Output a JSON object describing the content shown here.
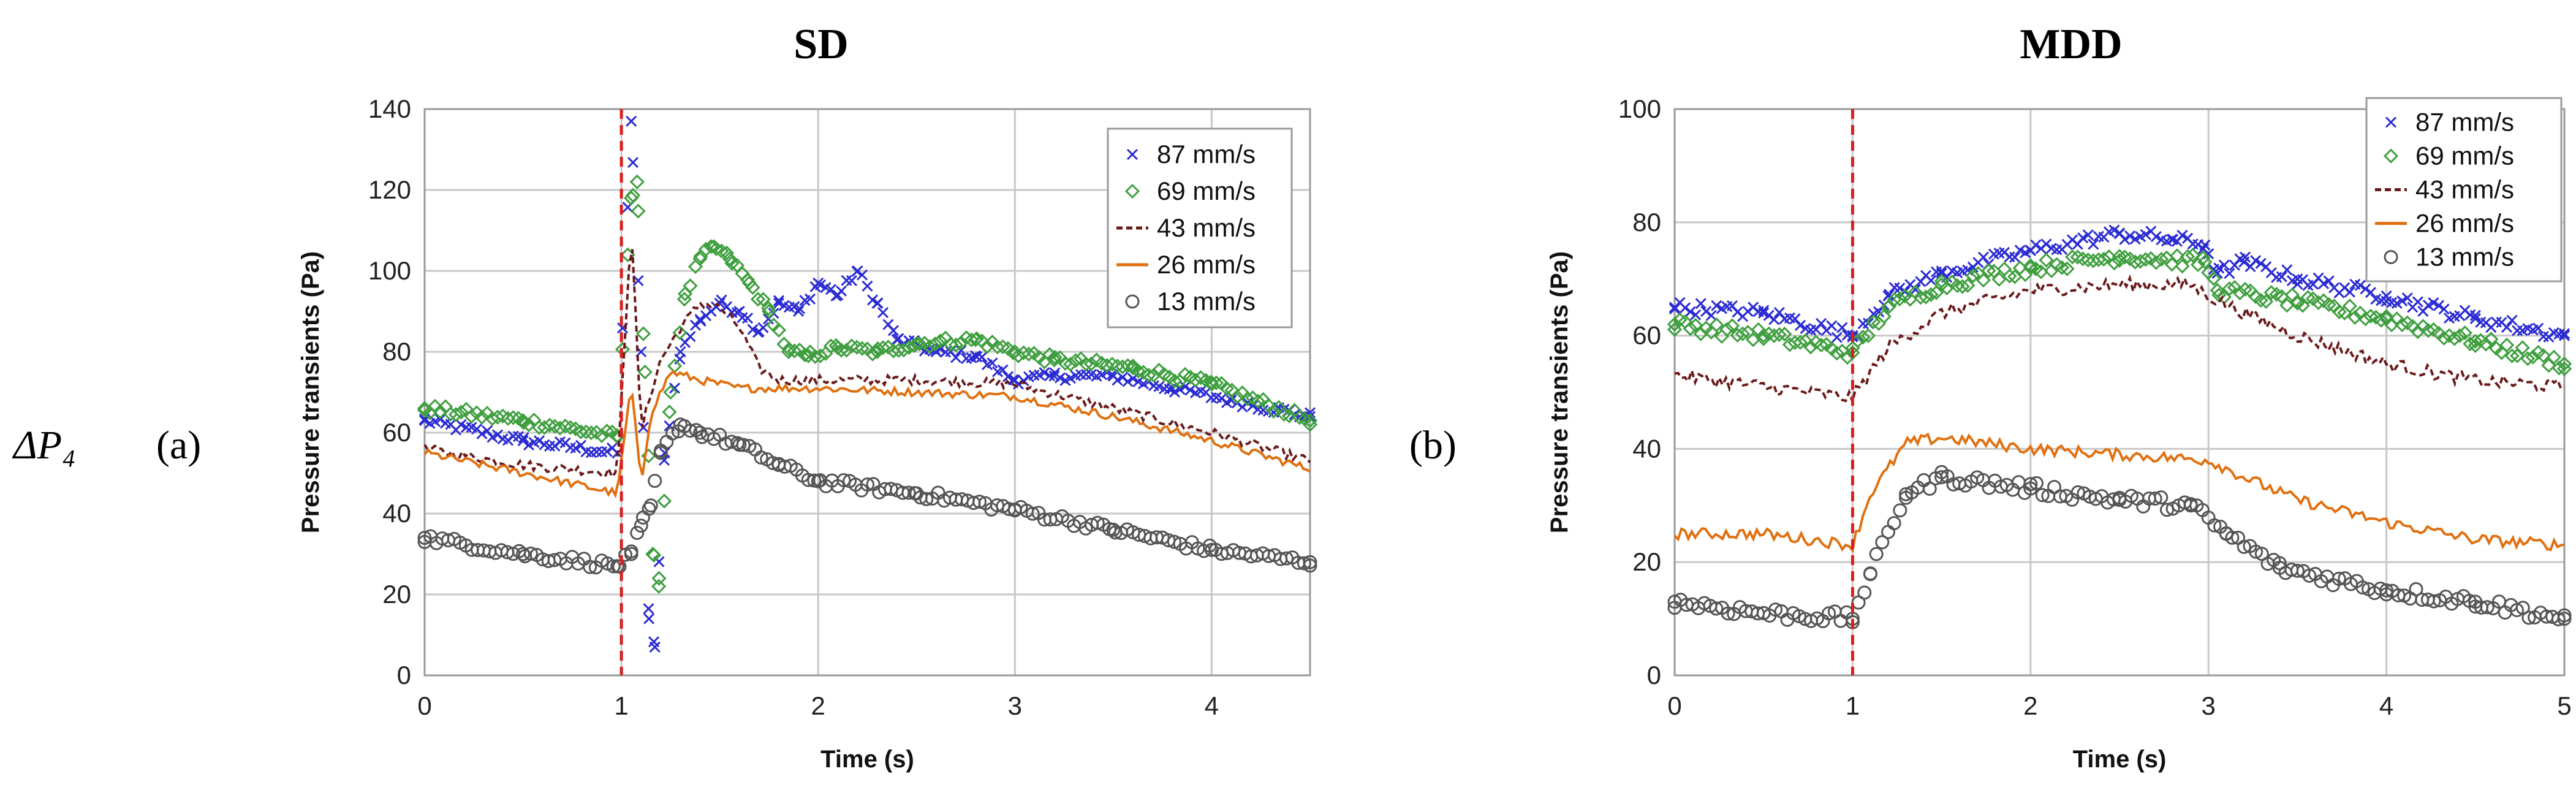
{
  "row_label": "ΔP₄",
  "colors": {
    "87": "#2b2bd4",
    "69": "#3f9f3f",
    "43": "#6b1a1a",
    "26": "#e07010",
    "13": "#555555",
    "marker_line": "#d91f1f"
  },
  "chart_data": [
    {
      "type": "scatter",
      "title": "SD",
      "panel_label": "(a)",
      "xlabel": "Time (s)",
      "ylabel": "Pressure transients (Pa)",
      "xlim": [
        0,
        4.5
      ],
      "ylim": [
        0,
        140
      ],
      "xticks": [
        0,
        1,
        2,
        3,
        4
      ],
      "yticks": [
        0,
        20,
        40,
        60,
        80,
        100,
        120,
        140
      ],
      "vline_x": 1.0,
      "legend_position": "top-right",
      "series": [
        {
          "name": "87 mm/s",
          "key": "87",
          "marker": "x",
          "x": [
            0,
            0.5,
            0.98,
            1.05,
            1.1,
            1.14,
            1.17,
            1.22,
            1.3,
            1.4,
            1.5,
            1.6,
            1.7,
            1.8,
            1.9,
            2.0,
            2.1,
            2.2,
            2.3,
            2.4,
            2.6,
            2.8,
            3.0,
            3.2,
            3.5,
            3.8,
            4.1,
            4.5
          ],
          "y": [
            63,
            58,
            55,
            137,
            80,
            14,
            7,
            55,
            80,
            88,
            92,
            90,
            85,
            92,
            90,
            97,
            94,
            100,
            92,
            83,
            80,
            79,
            73,
            74,
            74,
            71,
            68,
            64
          ]
        },
        {
          "name": "69 mm/s",
          "key": "69",
          "marker": "diamond",
          "x": [
            0,
            0.5,
            0.98,
            1.05,
            1.08,
            1.12,
            1.16,
            1.19,
            1.25,
            1.32,
            1.4,
            1.47,
            1.55,
            1.65,
            1.75,
            1.85,
            1.95,
            2.1,
            2.3,
            2.5,
            2.8,
            3.0,
            3.2,
            3.6,
            4.0,
            4.5
          ],
          "y": [
            66,
            63,
            59,
            118,
            122,
            75,
            30,
            22,
            70,
            93,
            103,
            106,
            103,
            97,
            90,
            80,
            79,
            81,
            80,
            82,
            83,
            80,
            78,
            76,
            72,
            63
          ]
        },
        {
          "name": "43 mm/s",
          "key": "43",
          "marker": "dash",
          "x": [
            0,
            0.5,
            0.98,
            1.05,
            1.1,
            1.15,
            1.2,
            1.3,
            1.4,
            1.5,
            1.6,
            1.7,
            1.8,
            2.0,
            2.5,
            3.0,
            3.5,
            4.0,
            4.5
          ],
          "y": [
            56,
            52,
            50,
            112,
            60,
            70,
            78,
            86,
            92,
            91,
            86,
            76,
            73,
            73,
            73,
            72,
            66,
            60,
            53
          ]
        },
        {
          "name": "26 mm/s",
          "key": "26",
          "marker": "line",
          "x": [
            0,
            0.5,
            0.98,
            1.05,
            1.1,
            1.15,
            1.25,
            1.4,
            1.6,
            2.0,
            2.5,
            3.0,
            3.5,
            4.0,
            4.5
          ],
          "y": [
            55,
            50,
            45,
            72,
            47,
            65,
            75,
            73,
            71,
            71,
            70,
            69,
            64,
            58,
            51
          ]
        },
        {
          "name": "13 mm/s",
          "key": "13",
          "marker": "circle",
          "x": [
            0,
            0.5,
            0.98,
            1.05,
            1.1,
            1.15,
            1.2,
            1.3,
            1.4,
            1.6,
            1.8,
            2.0,
            2.5,
            3.0,
            3.5,
            4.0,
            4.5
          ],
          "y": [
            34,
            30,
            27,
            30,
            37,
            42,
            55,
            62,
            60,
            57,
            52,
            48,
            45,
            41,
            36,
            31,
            28
          ]
        }
      ]
    },
    {
      "type": "scatter",
      "title": "MDD",
      "panel_label": "(b)",
      "xlabel": "Time (s)",
      "ylabel": "Pressure transients (Pa)",
      "xlim": [
        0,
        5
      ],
      "ylim": [
        0,
        100
      ],
      "xticks": [
        0,
        1,
        2,
        3,
        4,
        5
      ],
      "yticks": [
        0,
        20,
        40,
        60,
        80,
        100
      ],
      "vline_x": 1.0,
      "legend_position": "top-right",
      "series": [
        {
          "name": "87 mm/s",
          "key": "87",
          "marker": "x",
          "x": [
            0,
            0.5,
            1.0,
            1.2,
            1.5,
            2.0,
            2.5,
            2.8,
            2.98,
            3.05,
            3.2,
            3.5,
            4.0,
            4.5,
            5.0
          ],
          "y": [
            65,
            64,
            60,
            67,
            71,
            75,
            78,
            77,
            76,
            71,
            73,
            70,
            67,
            63,
            60
          ]
        },
        {
          "name": "69 mm/s",
          "key": "69",
          "marker": "diamond",
          "x": [
            0,
            0.5,
            1.0,
            1.2,
            1.5,
            2.0,
            2.5,
            2.98,
            3.05,
            3.5,
            4.0,
            4.5,
            5.0
          ],
          "y": [
            62,
            60,
            57,
            65,
            69,
            72,
            74,
            73,
            68,
            66,
            63,
            59,
            55
          ]
        },
        {
          "name": "43 mm/s",
          "key": "43",
          "marker": "dash",
          "x": [
            0,
            0.5,
            1.0,
            1.2,
            1.5,
            2.0,
            2.5,
            2.9,
            3.0,
            3.2,
            3.5,
            4.0,
            4.5,
            5.0
          ],
          "y": [
            53,
            51,
            49,
            58,
            64,
            68,
            69,
            69,
            67,
            64,
            60,
            55,
            52,
            51
          ]
        },
        {
          "name": "26 mm/s",
          "key": "26",
          "marker": "line",
          "x": [
            0,
            0.5,
            1.0,
            1.1,
            1.3,
            1.5,
            2.0,
            2.5,
            3.0,
            3.2,
            3.5,
            4.0,
            4.5,
            5.0
          ],
          "y": [
            25,
            25,
            23,
            32,
            41,
            42,
            40,
            39,
            38,
            35,
            31,
            27,
            24,
            23
          ]
        },
        {
          "name": "13 mm/s",
          "key": "13",
          "marker": "circle",
          "x": [
            0,
            0.5,
            1.0,
            1.1,
            1.3,
            1.5,
            2.0,
            2.5,
            2.9,
            3.1,
            3.4,
            4.0,
            4.5,
            5.0
          ],
          "y": [
            13,
            11,
            10,
            18,
            32,
            35,
            33,
            31,
            30,
            25,
            19,
            15,
            13,
            10
          ]
        }
      ]
    }
  ]
}
